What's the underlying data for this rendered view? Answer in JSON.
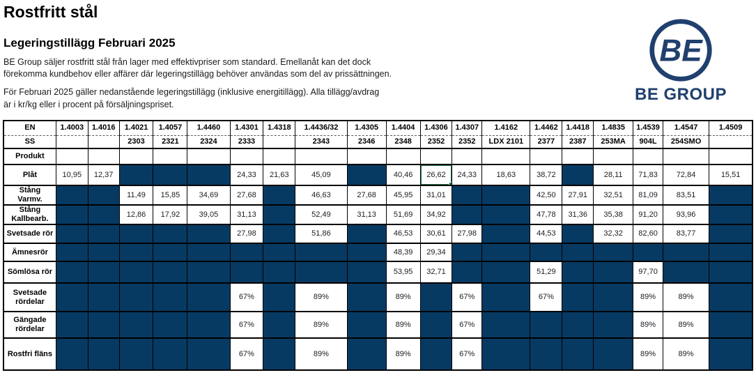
{
  "page": {
    "title": "Rostfritt stål",
    "subtitle": "Legeringstillägg Februari 2025",
    "paragraph1": "BE Group säljer rostfritt stål från lager med effektivpriser som standard. Emellanåt kan det dock\nförekomma kundbehov eller affärer där legeringstillägg behöver användas som del av prissättningen.",
    "paragraph2": "För Februari 2025 gäller nedanstående legeringstillägg (inklusive energitillägg). Alla tillägg/avdrag\när i kr/kg eller i procent på försäljningspriset."
  },
  "logo": {
    "circle_text": "BE",
    "caption": "BE GROUP",
    "color": "#20406e"
  },
  "colors": {
    "cell_fill_navy": "#073a63",
    "selection_green": "#217346"
  },
  "table": {
    "row_header_labels": {
      "en": "EN",
      "ss": "SS",
      "produkt": "Produkt"
    },
    "columns": [
      {
        "en": "1.4003",
        "ss": ""
      },
      {
        "en": "1.4016",
        "ss": ""
      },
      {
        "en": "1.4021",
        "ss": "2303"
      },
      {
        "en": "1.4057",
        "ss": "2321"
      },
      {
        "en": "1.4460",
        "ss": "2324"
      },
      {
        "en": "1.4301",
        "ss": "2333"
      },
      {
        "en": "1.4318",
        "ss": ""
      },
      {
        "en": "1.4436/32",
        "ss": "2343"
      },
      {
        "en": "1.4305",
        "ss": "2346"
      },
      {
        "en": "1.4404",
        "ss": "2348"
      },
      {
        "en": "1.4306",
        "ss": "2352"
      },
      {
        "en": "1.4307",
        "ss": "2352"
      },
      {
        "en": "1.4162",
        "ss": "LDX 2101"
      },
      {
        "en": "1.4462",
        "ss": "2377"
      },
      {
        "en": "1.4418",
        "ss": "2387"
      },
      {
        "en": "1.4835",
        "ss": "253MA"
      },
      {
        "en": "1.4539",
        "ss": "904L"
      },
      {
        "en": "1.4547",
        "ss": "254SMO"
      },
      {
        "en": "1.4509",
        "ss": ""
      }
    ],
    "rows": [
      {
        "label": "Plåt",
        "values": [
          "10,95",
          "12,37",
          null,
          null,
          null,
          "24,33",
          "21,63",
          "45,09",
          null,
          "40,46",
          "26,62",
          "24,33",
          "18,63",
          "38,72",
          null,
          "28,11",
          "71,83",
          "72,84",
          "15,51"
        ]
      },
      {
        "label": "Stång\nVarmv.",
        "values": [
          null,
          null,
          "11,49",
          "15,85",
          "34,69",
          "27,68",
          null,
          "46,63",
          "27,68",
          "45,95",
          "31,01",
          null,
          null,
          "42,50",
          "27,91",
          "32,51",
          "81,09",
          "83,51",
          null
        ]
      },
      {
        "label": "Stång\nKallbearb.",
        "values": [
          null,
          null,
          "12,86",
          "17,92",
          "39,05",
          "31,13",
          null,
          "52,49",
          "31,13",
          "51,69",
          "34,92",
          null,
          null,
          "47,78",
          "31,36",
          "35,38",
          "91,20",
          "93,96",
          null
        ]
      },
      {
        "label": "Svetsade rör",
        "values": [
          null,
          null,
          null,
          null,
          null,
          "27,98",
          null,
          "51,86",
          null,
          "46,53",
          "30,61",
          "27,98",
          null,
          "44,53",
          null,
          "32,32",
          "82,60",
          "83,77",
          null
        ]
      },
      {
        "label": "Ämnesrör",
        "values": [
          null,
          null,
          null,
          null,
          null,
          null,
          null,
          null,
          null,
          "48,39",
          "29,34",
          null,
          null,
          null,
          null,
          null,
          null,
          null,
          null
        ]
      },
      {
        "label": "Sömlösa rör",
        "values": [
          null,
          null,
          null,
          null,
          null,
          null,
          null,
          null,
          null,
          "53,95",
          "32,71",
          null,
          null,
          "51,29",
          null,
          null,
          "97,70",
          null,
          null
        ]
      },
      {
        "label": "Svetsade\nrördelar",
        "values": [
          null,
          null,
          null,
          null,
          null,
          "67%",
          null,
          "89%",
          null,
          "89%",
          null,
          "67%",
          null,
          "67%",
          null,
          null,
          "89%",
          "89%",
          null
        ]
      },
      {
        "label": "Gängade\nrördelar",
        "values": [
          null,
          null,
          null,
          null,
          null,
          "67%",
          null,
          "89%",
          null,
          "89%",
          null,
          "67%",
          null,
          null,
          null,
          null,
          "89%",
          "89%",
          null
        ]
      },
      {
        "label": "Rostfri fläns",
        "values": [
          null,
          null,
          null,
          null,
          null,
          "67%",
          null,
          "89%",
          null,
          "89%",
          null,
          "67%",
          null,
          null,
          null,
          null,
          "89%",
          "89%",
          null
        ]
      }
    ],
    "selected_cell": {
      "row_label": "Plåt",
      "column_en": "1.4306",
      "value": "26,62"
    }
  }
}
